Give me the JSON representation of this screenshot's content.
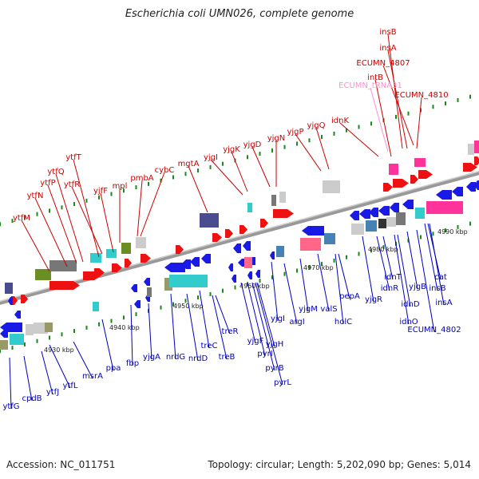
{
  "title": "Escherichia coli UMN026, complete genome",
  "footer": {
    "accession": "Accession: NC_011751",
    "summary": "Topology: circular; Length: 5,202,090 bp; Genes: 5,014"
  },
  "colors": {
    "forward_label": "#cc0000",
    "reverse_label": "#0000bb",
    "rna_label": "#ff8fd0",
    "backbone": "#888888",
    "tick": "#1a8a1a"
  },
  "scale_labels": [
    "4930 kbp",
    "4940 kbp",
    "4950 kbp",
    "4960 kbp",
    "4970 kbp",
    "4980 kbp",
    "4990 kbp"
  ],
  "forward_genes": [
    "ytfM",
    "ytfN",
    "ytfP",
    "ytfQ",
    "ytfT",
    "ytfR",
    "yjfF",
    "mpl",
    "pmbA",
    "cybC",
    "mgtA",
    "yjgI",
    "yjgK",
    "yjgD",
    "yjgN",
    "yjgP",
    "yjgQ",
    "idnK",
    "intB",
    "ECUMN_4807",
    "ECUMN_4810",
    "insA",
    "insB"
  ],
  "rna_genes": [
    "ECUMN_tRNA31"
  ],
  "reverse_genes": [
    "ytfG",
    "cpdB",
    "ytfJ",
    "ytfL",
    "msrA",
    "ppa",
    "fbp",
    "yjgA",
    "nrdG",
    "nrdD",
    "treC",
    "treB",
    "treR",
    "yjgF",
    "pyrI",
    "pyrB",
    "pyrL",
    "yjgH",
    "yjgI",
    "argI",
    "yjgM",
    "valS",
    "holC",
    "pepA",
    "yjgR",
    "idnR",
    "idnT",
    "idnO",
    "idnD",
    "yjgB",
    "ECUMN_4802",
    "insB",
    "insA",
    "cat"
  ]
}
